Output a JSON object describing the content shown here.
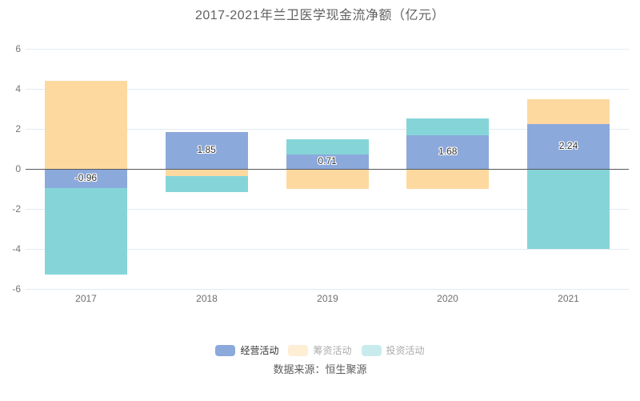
{
  "title": "2017-2021年兰卫医学现金流净额（亿元）",
  "source": "数据来源：恒生聚源",
  "chart_data": {
    "type": "bar",
    "stacked": true,
    "title": "2017-2021年兰卫医学现金流净额（亿元）",
    "categories": [
      "2017",
      "2018",
      "2019",
      "2020",
      "2021"
    ],
    "series": [
      {
        "key": "operating",
        "name": "经营活动",
        "color": "#8CA9DB",
        "values": [
          -0.96,
          1.85,
          0.71,
          1.68,
          2.24
        ],
        "labels": [
          "-0.96",
          "1.85",
          "0.71",
          "1.68",
          "2.24"
        ],
        "legend_dimmed": false
      },
      {
        "key": "financing",
        "name": "筹资活动",
        "color": "#FDD9A0",
        "values": [
          4.4,
          -0.37,
          -1.01,
          -1.01,
          1.23
        ],
        "labels": null,
        "legend_dimmed": true
      },
      {
        "key": "investing",
        "name": "投资活动",
        "color": "#85D5D8",
        "values": [
          -4.32,
          -0.79,
          0.79,
          0.85,
          -4.01
        ],
        "labels": null,
        "legend_dimmed": true
      }
    ],
    "ylim": [
      -6,
      6
    ],
    "yticks": [
      6,
      4,
      2,
      0,
      -2,
      -4,
      -6
    ],
    "grid": true,
    "legend_position": "bottom",
    "xlabel": "",
    "ylabel": ""
  },
  "style": {
    "background": "#FFFFFF",
    "grid_color": "#E4EAF4",
    "zero_axis_color": "#55585C",
    "tick_label_color": "#757575",
    "title_color": "#616161",
    "bar_label_color": "#333333",
    "dimmed_legend_text": "#ABABAB",
    "source_color": "#5C5C5C"
  }
}
